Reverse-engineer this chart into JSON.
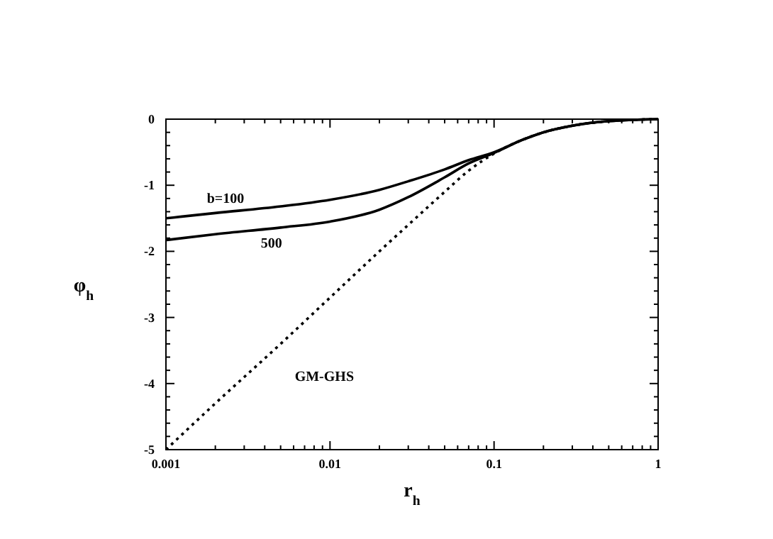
{
  "chart_data": {
    "type": "line",
    "xlabel": "r$_{h}$",
    "ylabel": "φ$_{h}$",
    "log": "x",
    "xlim": [
      0.001,
      1
    ],
    "ylim": [
      -5,
      0
    ],
    "xticks": [
      0.001,
      0.01,
      0.1,
      1
    ],
    "yticks": [
      -5,
      -4,
      -3,
      -2,
      -1,
      0
    ],
    "grid": false,
    "series": [
      {
        "name": "b=100",
        "color": "#000000",
        "line_style": "solid",
        "x": [
          0.001,
          0.002,
          0.005,
          0.01,
          0.02,
          0.03,
          0.05,
          0.07,
          0.1,
          0.15,
          0.2,
          0.3,
          0.5,
          0.7,
          1
        ],
        "values": [
          -1.5,
          -1.42,
          -1.32,
          -1.22,
          -1.07,
          -0.94,
          -0.76,
          -0.62,
          -0.5,
          -0.31,
          -0.2,
          -0.1,
          -0.03,
          -0.01,
          0
        ]
      },
      {
        "name": "500",
        "color": "#000000",
        "line_style": "solid",
        "x": [
          0.001,
          0.002,
          0.005,
          0.01,
          0.02,
          0.03,
          0.05,
          0.07,
          0.1,
          0.15,
          0.2,
          0.3,
          0.5,
          0.7,
          1
        ],
        "values": [
          -1.83,
          -1.74,
          -1.64,
          -1.55,
          -1.37,
          -1.18,
          -0.88,
          -0.67,
          -0.51,
          -0.31,
          -0.2,
          -0.1,
          -0.03,
          -0.01,
          0
        ]
      },
      {
        "name": "GM-GHS",
        "color": "#000000",
        "line_style": "dotted",
        "x": [
          0.001,
          0.002,
          0.005,
          0.01,
          0.02,
          0.03,
          0.05,
          0.07,
          0.1,
          0.15,
          0.2,
          0.3,
          0.5,
          0.7,
          1
        ],
        "values": [
          -5,
          -4.3,
          -3.4,
          -2.7,
          -2.0,
          -1.6,
          -1.1,
          -0.78,
          -0.52,
          -0.31,
          -0.2,
          -0.1,
          -0.03,
          -0.01,
          0
        ]
      }
    ]
  }
}
